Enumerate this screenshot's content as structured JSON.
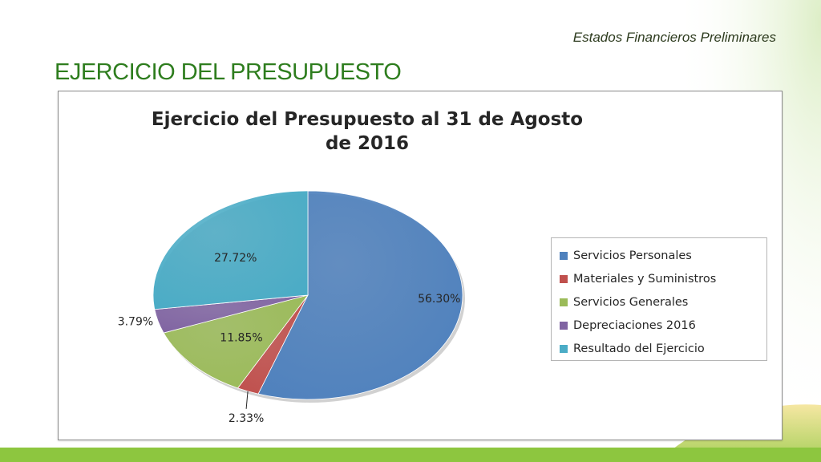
{
  "header": {
    "subtitle": "Estados Financieros Preliminares",
    "title": "EJERCICIO DEL PRESUPUESTO"
  },
  "colors": {
    "title_green": "#2e7d1e",
    "bottom_bar": "#8dc63f"
  },
  "chart_data": {
    "type": "pie",
    "title_lines": [
      "Ejercicio del Presupuesto al 31 de Agosto",
      "de 2016"
    ],
    "legend_position": "right",
    "slices": [
      {
        "label": "Servicios Personales",
        "value": 56.3,
        "display": "56.30%",
        "color": "#4f81bd"
      },
      {
        "label": "Materiales y Suministros",
        "value": 2.33,
        "display": "2.33%",
        "color": "#c0504d"
      },
      {
        "label": "Servicios Generales",
        "value": 11.85,
        "display": "11.85%",
        "color": "#9bbb59"
      },
      {
        "label": "Depreciaciones 2016",
        "value": 3.79,
        "display": "3.79%",
        "color": "#8064a2"
      },
      {
        "label": "Resultado del Ejercicio",
        "value": 27.72,
        "display": "27.72%",
        "color": "#4bacc6"
      }
    ]
  }
}
